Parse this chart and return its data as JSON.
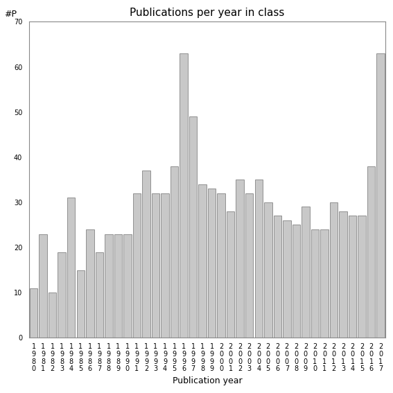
{
  "title": "Publications per year in class",
  "xlabel": "Publication year",
  "ylabel": "#P",
  "ylim": [
    0,
    70
  ],
  "yticks": [
    0,
    10,
    20,
    30,
    40,
    50,
    60,
    70
  ],
  "categories": [
    "1980",
    "1981",
    "1982",
    "1983",
    "1984",
    "1985",
    "1986",
    "1987",
    "1988",
    "1989",
    "1990",
    "1991",
    "1992",
    "1993",
    "1994",
    "1995",
    "1996",
    "1997",
    "1998",
    "1999",
    "2000",
    "2001",
    "2002",
    "2003",
    "2004",
    "2005",
    "2006",
    "2007",
    "2008",
    "2009",
    "2010",
    "2011",
    "2012",
    "2013",
    "2014",
    "2015",
    "2016",
    "2017"
  ],
  "values": [
    11,
    23,
    10,
    19,
    31,
    15,
    24,
    19,
    23,
    23,
    23,
    32,
    37,
    32,
    32,
    38,
    63,
    49,
    34,
    33,
    32,
    28,
    35,
    32,
    35,
    30,
    27,
    26,
    25,
    29,
    24,
    24,
    30,
    28,
    27,
    27,
    38,
    63
  ],
  "bar_color": "#c8c8c8",
  "bar_edgecolor": "#707070",
  "background_color": "#ffffff",
  "title_fontsize": 11,
  "axis_label_fontsize": 9,
  "tick_fontsize": 7,
  "ylabel_fontsize": 9
}
